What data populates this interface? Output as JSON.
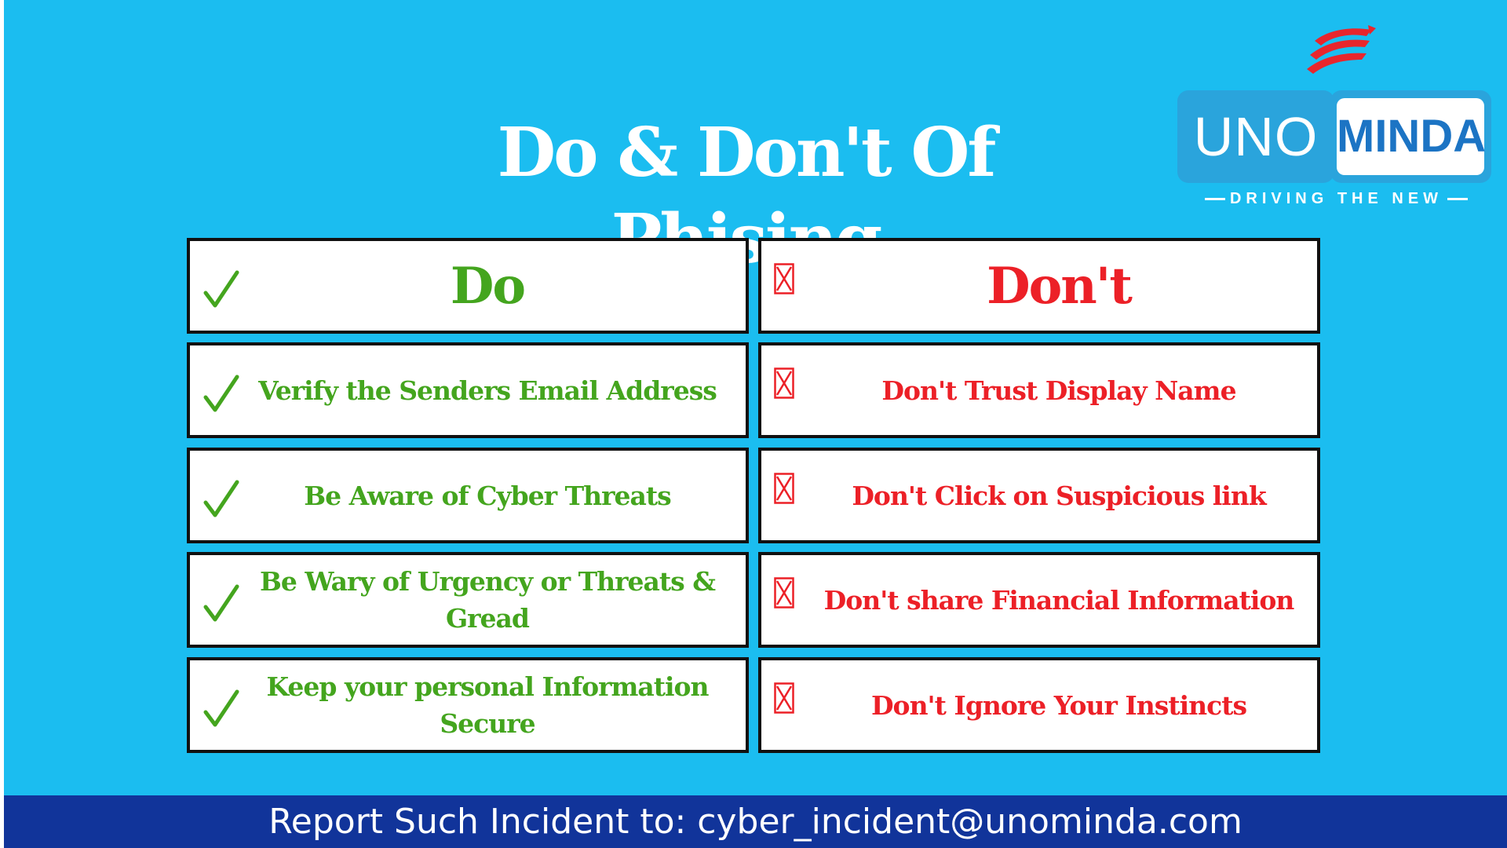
{
  "title": "Do & Don't Of Phising",
  "logo": {
    "brand_left": "UNO",
    "brand_right": "MINDA",
    "tagline": "DRIVING THE NEW"
  },
  "table": {
    "do_header": "Do",
    "dont_header": "Don't",
    "do_items": [
      "Verify the Senders Email Address",
      "Be Aware of Cyber Threats",
      "Be Wary of Urgency or Threats & Gread",
      "Keep your personal Information Secure"
    ],
    "dont_items": [
      "Don't Trust Display Name",
      "Don't Click on Suspicious link",
      "Don't share Financial Information",
      "Don't Ignore Your Instincts"
    ],
    "icons": {
      "do": "check-icon",
      "dont": "ballot-x-icon"
    }
  },
  "footer": {
    "text": "Report Such Incident to: cyber_incident@unominda.com"
  },
  "colors": {
    "background": "#1bbdf0",
    "do_green": "#44a51e",
    "dont_red": "#ec2027",
    "footer_bg": "#11349a",
    "logo_blue": "#2aa4dc"
  }
}
